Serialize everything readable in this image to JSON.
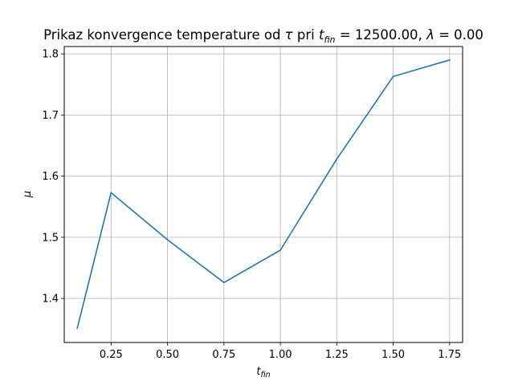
{
  "chart_data": {
    "type": "line",
    "title_prefix": "Prikaz konvergence temperature od ",
    "title_tau": "τ",
    "title_mid": " pri ",
    "title_t": "t",
    "title_t_sub": "fin",
    "title_eq1": " = 12500.00, ",
    "title_lambda": "λ",
    "title_eq2": " = 0.00",
    "xlabel_main": "t",
    "xlabel_sub": "fin",
    "ylabel": "μ",
    "xlim": [
      0.0425,
      1.8075
    ],
    "ylim": [
      1.328,
      1.812
    ],
    "xticks": [
      0.25,
      0.5,
      0.75,
      1.0,
      1.25,
      1.5,
      1.75
    ],
    "xtick_labels": [
      "0.25",
      "0.50",
      "0.75",
      "1.00",
      "1.25",
      "1.50",
      "1.75"
    ],
    "yticks": [
      1.4,
      1.5,
      1.6,
      1.7,
      1.8
    ],
    "ytick_labels": [
      "1.4",
      "1.5",
      "1.6",
      "1.7",
      "1.8"
    ],
    "grid": true,
    "line_color": "#1f77b4",
    "x": [
      0.1,
      0.25,
      0.5,
      0.75,
      1.0,
      1.25,
      1.5,
      1.75
    ],
    "y": [
      1.351,
      1.573,
      1.496,
      1.426,
      1.479,
      1.628,
      1.763,
      1.79
    ]
  }
}
